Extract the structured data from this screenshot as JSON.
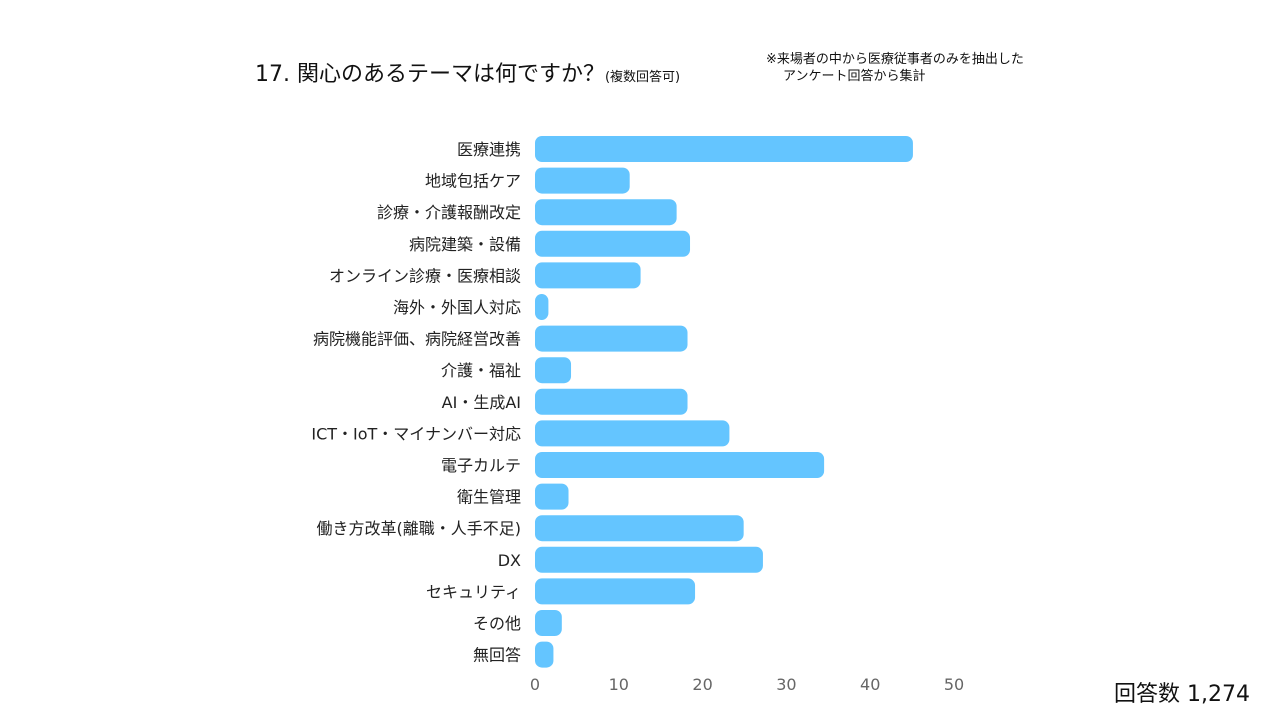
{
  "title": {
    "main": "17. 関心のあるテーマは何ですか？",
    "sub": "(複数回答可)"
  },
  "note": {
    "line1": "※来場者の中から医療従事者のみを抽出した",
    "line2": "アンケート回答から集計"
  },
  "footer": "回答数 1,274",
  "chart_data": {
    "type": "bar",
    "orientation": "horizontal",
    "categories": [
      "医療連携",
      "地域包括ケア",
      "診療・介護報酬改定",
      "病院建築・設備",
      "オンライン診療・医療相談",
      "海外・外国人対応",
      "病院機能評価、病院経営改善",
      "介護・福祉",
      "AI・生成AI",
      "ICT・IoT・マイナンバー対応",
      "電子カルテ",
      "衛生管理",
      "働き方改革(離職・人手不足)",
      "DX",
      "セキュリティ",
      "その他",
      "無回答"
    ],
    "values": [
      45.1,
      11.3,
      16.9,
      18.5,
      12.6,
      1.6,
      18.2,
      4.3,
      18.2,
      23.2,
      34.5,
      4.0,
      24.9,
      27.2,
      19.1,
      3.2,
      2.2
    ],
    "xticks": [
      "0",
      "10",
      "20",
      "30",
      "40",
      "50"
    ],
    "xlim": [
      0,
      50
    ],
    "bar_color": "#64c5ff",
    "grid": false
  }
}
